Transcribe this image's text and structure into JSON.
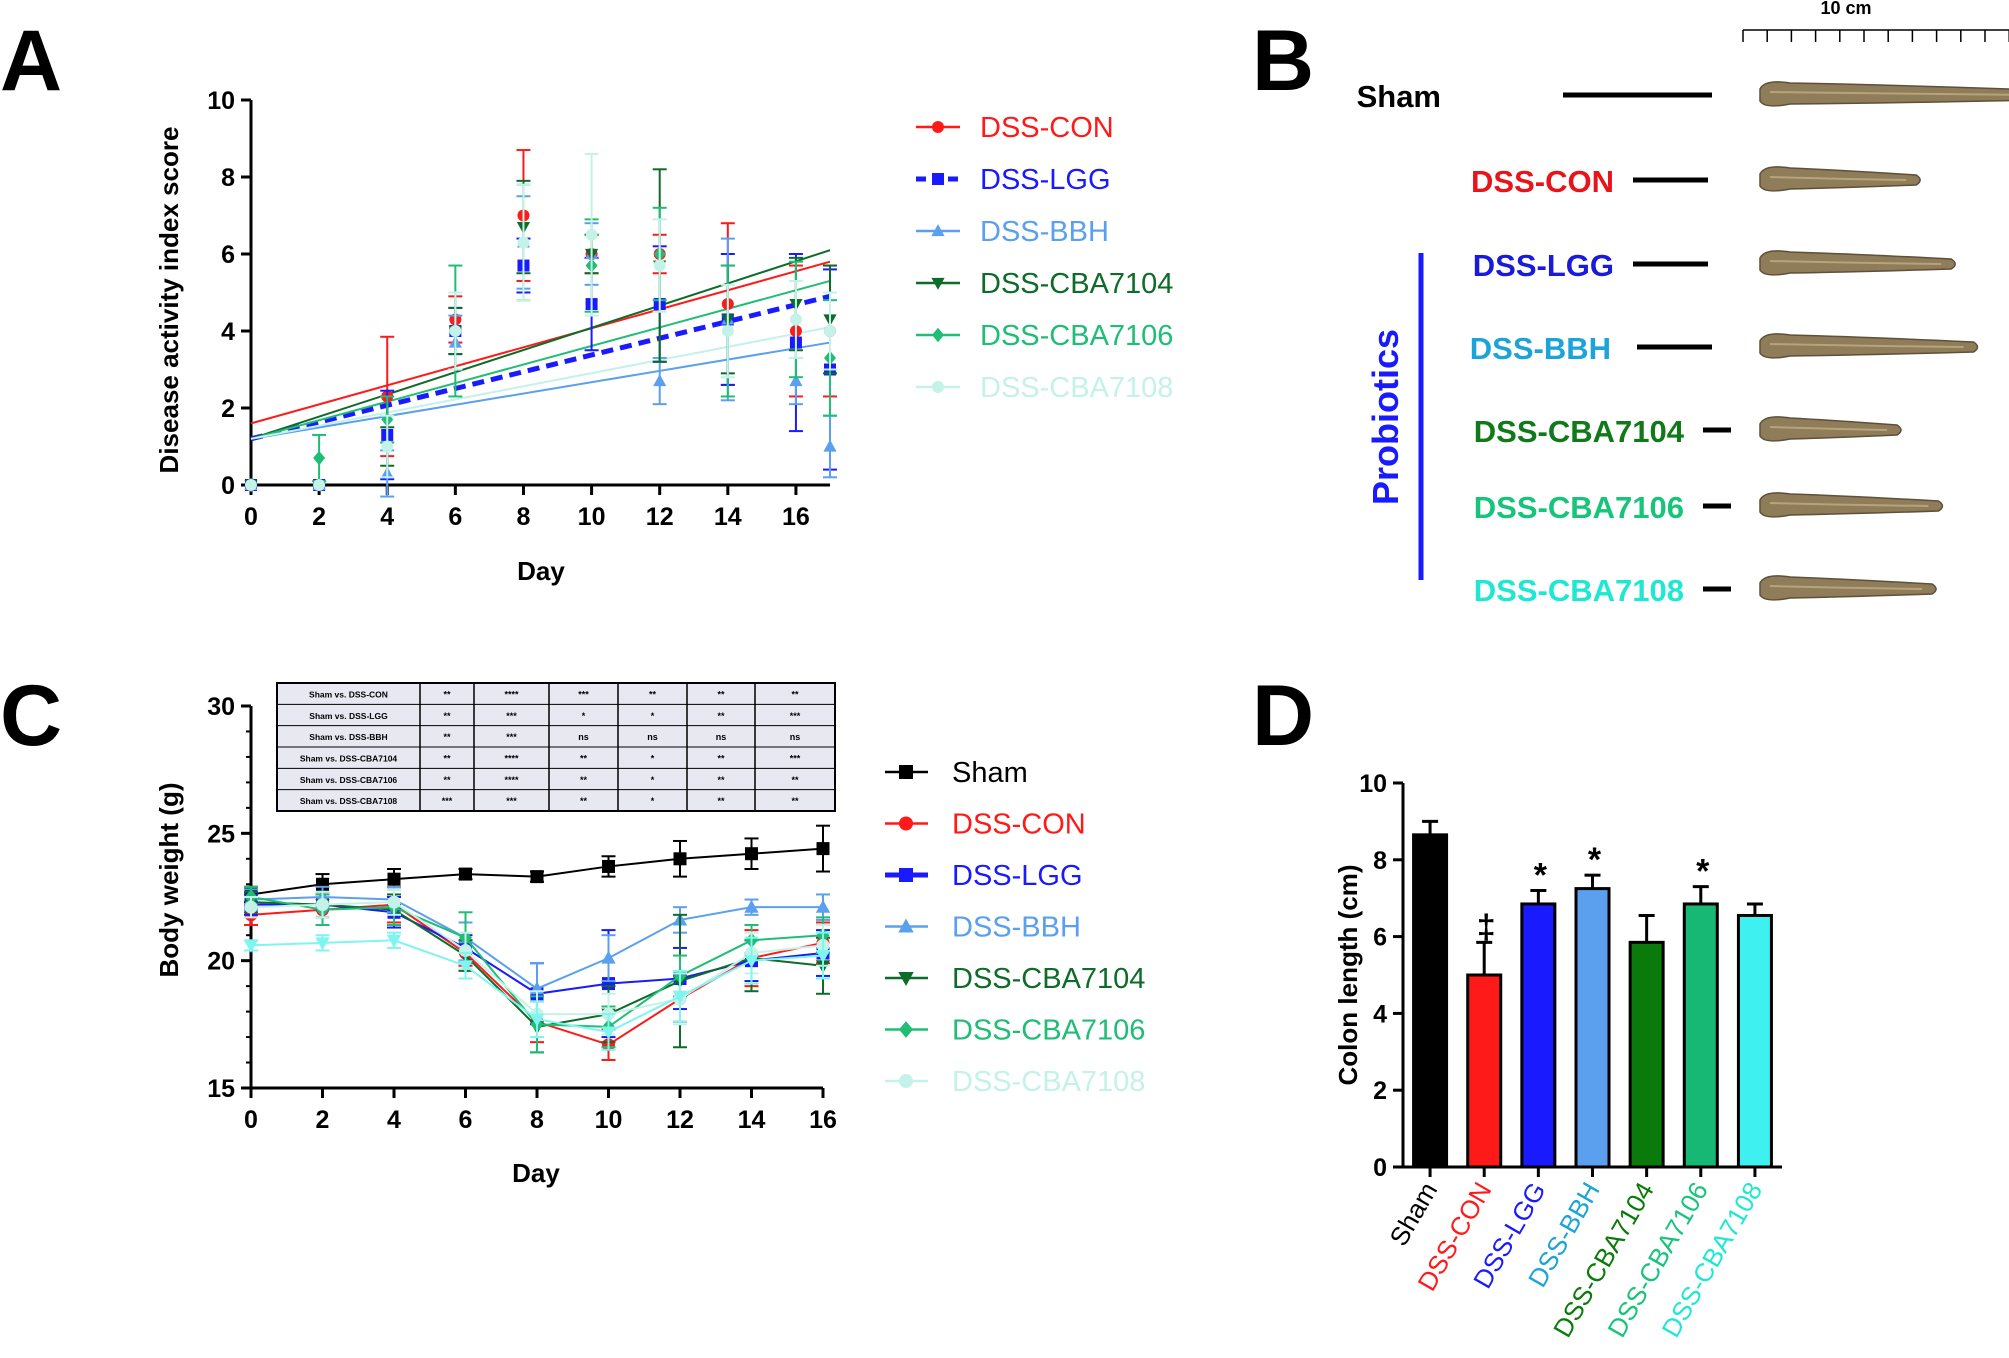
{
  "panel_letters": [
    "A",
    "B",
    "C",
    "D"
  ],
  "panel_a": {
    "chart_data": {
      "type": "scatter",
      "title": "",
      "xlabel": "Day",
      "ylabel": "Disease activity index score",
      "xlim": [
        0,
        17
      ],
      "ylim": [
        0,
        10
      ],
      "xticks": [
        "0",
        "2",
        "4",
        "6",
        "8",
        "10",
        "12",
        "14",
        "16"
      ],
      "yticks": [
        "0",
        "2",
        "4",
        "6",
        "8",
        "10"
      ],
      "x": [
        0,
        2,
        4,
        6,
        8,
        10,
        12,
        14,
        16,
        17
      ],
      "series": [
        {
          "name": "DSS-CON",
          "color": "#ff1a1a",
          "marker": "circle",
          "dashed": false,
          "values": [
            0,
            0,
            2.3,
            4.3,
            7.0,
            6.0,
            6.0,
            4.7,
            4.0,
            4.0
          ],
          "errors": [
            0,
            0,
            1.55,
            0.6,
            1.7,
            0.5,
            0.5,
            2.1,
            1.7,
            1.7
          ],
          "fit": [
            1.6,
            5.8
          ]
        },
        {
          "name": "DSS-LGG",
          "color": "#1a1aff",
          "marker": "square",
          "dashed": true,
          "values": [
            0,
            0,
            1.3,
            4.0,
            5.7,
            4.7,
            4.7,
            4.3,
            3.7,
            3.0
          ],
          "errors": [
            0,
            0,
            1.15,
            0.6,
            0.7,
            1.2,
            1.5,
            1.7,
            2.3,
            2.6
          ],
          "fit": [
            1.2,
            4.9
          ]
        },
        {
          "name": "DSS-BBH",
          "color": "#5aa0ee",
          "marker": "triangle-up",
          "dashed": false,
          "values": [
            0,
            0,
            0.3,
            3.7,
            6.3,
            6.0,
            2.7,
            4.3,
            2.7,
            1.0
          ],
          "errors": [
            0,
            0,
            0.6,
            0.7,
            1.2,
            0.8,
            0.6,
            2.1,
            0.6,
            0.8
          ],
          "fit": [
            1.2,
            3.7
          ]
        },
        {
          "name": "DSS-CBA7104",
          "color": "#0f6b2a",
          "marker": "triangle-down",
          "dashed": false,
          "values": [
            0,
            0,
            1.0,
            4.0,
            6.7,
            6.0,
            5.7,
            4.3,
            4.7,
            4.3
          ],
          "errors": [
            0,
            0,
            0.5,
            0.6,
            1.2,
            0.5,
            2.5,
            1.4,
            1.2,
            1.4
          ],
          "fit": [
            1.2,
            6.1
          ]
        },
        {
          "name": "DSS-CBA7106",
          "color": "#1fbd76",
          "marker": "diamond",
          "dashed": false,
          "values": [
            0,
            0.7,
            1.7,
            4.0,
            6.3,
            5.7,
            6.0,
            4.0,
            4.3,
            3.3
          ],
          "errors": [
            0,
            0.6,
            0.6,
            1.7,
            1.5,
            1.2,
            1.2,
            1.7,
            1.5,
            1.5
          ],
          "fit": [
            1.2,
            5.3
          ]
        },
        {
          "name": "DSS-CBA7108",
          "color": "#c4f2e8",
          "marker": "circle",
          "dashed": false,
          "values": [
            0,
            0,
            1.0,
            4.0,
            6.3,
            6.5,
            5.7,
            4.0,
            4.3,
            4.0
          ],
          "errors": [
            0,
            0,
            0.8,
            1.0,
            1.5,
            2.1,
            1.2,
            1.2,
            1.0,
            1.0
          ],
          "fit": [
            1.2,
            4.1
          ]
        }
      ]
    }
  },
  "panel_b": {
    "scale_bar_label": "10 cm",
    "probiotics_label": "Probiotics",
    "rows": [
      {
        "label": "Sham",
        "color": "#000000"
      },
      {
        "label": "DSS-CON",
        "color": "#e8141b"
      },
      {
        "label": "DSS-LGG",
        "color": "#1a1adb"
      },
      {
        "label": "DSS-BBH",
        "color": "#1ca3d8"
      },
      {
        "label": "DSS-CBA7104",
        "color": "#107a1a"
      },
      {
        "label": "DSS-CBA7106",
        "color": "#16c47a"
      },
      {
        "label": "DSS-CBA7108",
        "color": "#1fe8d2"
      }
    ],
    "colon_lengths_cm": [
      8.7,
      4.9,
      6.0,
      6.7,
      4.3,
      5.6,
      5.4
    ]
  },
  "panel_c": {
    "chart_data": {
      "type": "line",
      "title": "",
      "xlabel": "Day",
      "ylabel": "Body weight (g)",
      "xlim": [
        0,
        16
      ],
      "ylim": [
        15,
        30
      ],
      "xticks": [
        "0",
        "2",
        "4",
        "6",
        "8",
        "10",
        "12",
        "14",
        "16"
      ],
      "yticks": [
        "15",
        "20",
        "25",
        "30"
      ],
      "x": [
        0,
        2,
        4,
        6,
        8,
        10,
        12,
        14,
        16
      ],
      "series": [
        {
          "name": "Sham",
          "color": "#000000",
          "marker": "square",
          "values": [
            22.6,
            23.0,
            23.2,
            23.4,
            23.3,
            23.7,
            24.0,
            24.2,
            24.4
          ],
          "errors": [
            0.3,
            0.4,
            0.4,
            0.2,
            0.2,
            0.4,
            0.7,
            0.6,
            0.9
          ]
        },
        {
          "name": "DSS-CON",
          "color": "#ff1a1a",
          "marker": "circle",
          "values": [
            21.8,
            22.0,
            22.2,
            20.3,
            17.6,
            16.7,
            18.5,
            20.1,
            20.7
          ],
          "errors": [
            0.4,
            0.6,
            0.7,
            0.5,
            0.8,
            0.6,
            0.9,
            1.1,
            0.8
          ]
        },
        {
          "name": "DSS-LGG",
          "color": "#1a1aff",
          "marker": "square",
          "values": [
            22.2,
            22.2,
            21.9,
            20.5,
            18.7,
            19.1,
            19.3,
            20.0,
            20.3
          ],
          "errors": [
            0.4,
            0.5,
            0.6,
            0.5,
            1.2,
            2.1,
            1.2,
            0.8,
            0.9
          ]
        },
        {
          "name": "DSS-BBH",
          "color": "#5aa0ee",
          "marker": "triangle-up",
          "values": [
            22.4,
            22.5,
            22.4,
            20.9,
            18.9,
            20.1,
            21.6,
            22.1,
            22.1
          ],
          "errors": [
            0.4,
            0.4,
            0.5,
            0.6,
            1.0,
            0.9,
            0.5,
            0.3,
            0.5
          ]
        },
        {
          "name": "DSS-CBA7104",
          "color": "#0f6b2a",
          "marker": "triangle-down",
          "values": [
            22.3,
            22.2,
            22.0,
            20.2,
            17.4,
            17.9,
            19.2,
            20.1,
            19.8
          ],
          "errors": [
            0.4,
            0.5,
            0.6,
            0.6,
            1.0,
            1.1,
            2.6,
            1.3,
            1.1
          ]
        },
        {
          "name": "DSS-CBA7106",
          "color": "#1fbd76",
          "marker": "diamond",
          "values": [
            22.5,
            22.0,
            22.1,
            20.9,
            17.5,
            17.4,
            19.4,
            20.8,
            21.0
          ],
          "errors": [
            0.4,
            0.6,
            0.7,
            1.0,
            1.1,
            0.8,
            0.8,
            0.6,
            0.7
          ]
        },
        {
          "name": "DSS-CBA7108",
          "color": "#c4f2e8",
          "marker": "circle",
          "values": [
            22.1,
            22.2,
            22.3,
            20.4,
            17.9,
            17.9,
            18.5,
            20.3,
            20.6
          ],
          "errors": [
            0.4,
            0.5,
            0.5,
            0.7,
            0.9,
            0.8,
            1.0,
            0.8,
            0.8
          ]
        },
        {
          "name": "",
          "color": "#7ef5ef",
          "marker": "triangle-down",
          "values": [
            20.6,
            20.7,
            20.8,
            19.8,
            17.7,
            17.2,
            18.6,
            20.0,
            20.2
          ],
          "errors": [
            0.2,
            0.3,
            0.3,
            0.5,
            0.7,
            0.7,
            1.0,
            0.9,
            0.9
          ]
        }
      ],
      "stats_table": [
        [
          "Sham vs. DSS-CON",
          "**",
          "****",
          "***",
          "**",
          "**",
          "**"
        ],
        [
          "Sham vs. DSS-LGG",
          "**",
          "***",
          "*",
          "*",
          "**",
          "***"
        ],
        [
          "Sham vs. DSS-BBH",
          "**",
          "***",
          "ns",
          "ns",
          "ns",
          "ns"
        ],
        [
          "Sham vs. DSS-CBA7104",
          "**",
          "****",
          "**",
          "*",
          "**",
          "***"
        ],
        [
          "Sham vs. DSS-CBA7106",
          "**",
          "****",
          "**",
          "*",
          "**",
          "**"
        ],
        [
          "Sham vs. DSS-CBA7108",
          "***",
          "***",
          "**",
          "*",
          "**",
          "**"
        ]
      ]
    }
  },
  "panel_d": {
    "chart_data": {
      "type": "bar",
      "title": "",
      "xlabel": "",
      "ylabel": "Colon length (cm)",
      "ylim": [
        0,
        10
      ],
      "yticks": [
        "0",
        "2",
        "4",
        "6",
        "8",
        "10"
      ],
      "categories": [
        "Sham",
        "DSS-CON",
        "DSS-LGG",
        "DSS-BBH",
        "DSS-CBA7104",
        "DSS-CBA7106",
        "DSS-CBA7108"
      ],
      "values": [
        8.65,
        5.0,
        6.85,
        7.25,
        5.85,
        6.85,
        6.55
      ],
      "errors": [
        0.35,
        0.85,
        0.35,
        0.35,
        0.7,
        0.45,
        0.3
      ],
      "bar_colors": [
        "#000000",
        "#ff1a1a",
        "#1a1aff",
        "#5aa0ee",
        "#0a7a0a",
        "#16b873",
        "#3ef0f0"
      ],
      "label_colors": [
        "#000000",
        "#ff1a1a",
        "#1a1aff",
        "#1ca3d8",
        "#0a7a0a",
        "#16c47a",
        "#1fe8d2"
      ],
      "annotations": [
        "",
        "‡",
        "*",
        "*",
        "",
        "*",
        ""
      ]
    }
  }
}
